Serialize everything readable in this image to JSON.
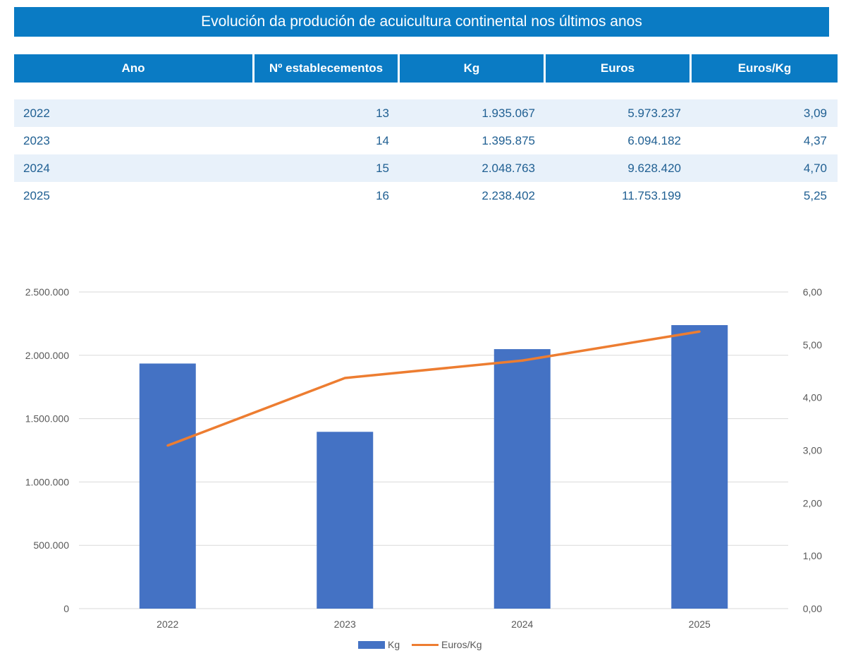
{
  "title": "Evolución da produción de acuicultura continental nos últimos anos",
  "table": {
    "headers": [
      "Ano",
      "Nº establecementos",
      "Kg",
      "Euros",
      "Euros/Kg"
    ],
    "rows": [
      [
        "2022",
        "13",
        "1.935.067",
        "5.973.237",
        "3,09"
      ],
      [
        "2023",
        "14",
        "1.395.875",
        "6.094.182",
        "4,37"
      ],
      [
        "2024",
        "15",
        "2.048.763",
        "9.628.420",
        "4,70"
      ],
      [
        "2025",
        "16",
        "2.238.402",
        "11.753.199",
        "5,25"
      ]
    ]
  },
  "colors": {
    "header": "#0a7bc4",
    "bar": "#4472c4",
    "line": "#ed7d31"
  },
  "chart_data": {
    "type": "bar",
    "categories": [
      "2022",
      "2023",
      "2024",
      "2025"
    ],
    "series": [
      {
        "name": "Kg",
        "type": "bar",
        "axis": "left",
        "values": [
          1935067,
          1395875,
          2048763,
          2238402
        ]
      },
      {
        "name": "Euros/Kg",
        "type": "line",
        "axis": "right",
        "values": [
          3.09,
          4.37,
          4.7,
          5.25
        ]
      }
    ],
    "y_left": {
      "min": 0,
      "max": 2500000,
      "ticks": [
        "0",
        "500.000",
        "1.000.000",
        "1.500.000",
        "2.000.000",
        "2.500.000"
      ]
    },
    "y_right": {
      "min": 0,
      "max": 6,
      "ticks": [
        "0,00",
        "1,00",
        "2,00",
        "3,00",
        "4,00",
        "5,00",
        "6,00"
      ]
    },
    "grid": true,
    "legend": "bottom",
    "title": "",
    "xlabel": "",
    "ylabel": ""
  }
}
